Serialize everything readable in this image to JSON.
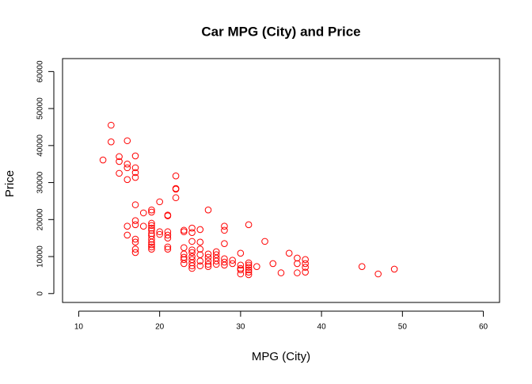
{
  "chart_data": {
    "type": "scatter",
    "title": "Car MPG (City) and Price",
    "x_label": "MPG (City)",
    "y_label": "Price",
    "color": "#ff0000",
    "x": [
      13,
      14,
      14,
      15,
      15,
      15,
      16,
      16,
      16,
      16,
      16,
      16,
      17,
      17,
      17,
      17,
      17,
      17,
      17,
      17,
      17,
      17,
      17,
      18,
      18,
      19,
      19,
      19,
      19,
      19,
      19,
      19,
      19,
      19,
      19,
      19,
      19,
      19,
      20,
      20,
      20,
      21,
      21,
      21,
      21,
      21,
      21,
      21,
      22,
      22,
      22,
      22,
      23,
      23,
      23,
      23,
      23,
      23,
      23,
      24,
      24,
      24,
      24,
      24,
      24,
      24,
      24,
      24,
      24,
      25,
      25,
      25,
      25,
      25,
      25,
      26,
      26,
      26,
      26,
      26,
      26,
      27,
      27,
      27,
      27,
      27,
      28,
      28,
      28,
      28,
      28,
      28,
      29,
      29,
      30,
      30,
      30,
      30,
      30,
      31,
      31,
      31,
      31,
      31,
      31,
      31,
      32,
      33,
      34,
      35,
      36,
      37,
      37,
      37,
      38,
      38,
      38,
      38,
      45,
      47,
      49
    ],
    "values": [
      36100,
      45500,
      41000,
      37000,
      35700,
      32500,
      41300,
      35000,
      34000,
      30800,
      18200,
      15800,
      37200,
      34000,
      32700,
      31400,
      24000,
      19700,
      18600,
      14700,
      13900,
      12000,
      11100,
      21800,
      18200,
      22600,
      22000,
      19000,
      18400,
      17700,
      17100,
      16200,
      15600,
      14700,
      13900,
      13200,
      12600,
      12000,
      24800,
      16700,
      16000,
      21200,
      21000,
      16700,
      15800,
      15000,
      12600,
      12000,
      31800,
      28400,
      28200,
      25900,
      17100,
      16700,
      12400,
      10700,
      9800,
      9200,
      8100,
      17700,
      16500,
      14100,
      11800,
      11100,
      10000,
      9200,
      8300,
      7500,
      6800,
      17300,
      13900,
      12000,
      10500,
      8800,
      7500,
      22600,
      10700,
      9800,
      8800,
      7900,
      7300,
      11300,
      10500,
      9600,
      8800,
      7900,
      18200,
      17100,
      13500,
      9400,
      8500,
      7700,
      9000,
      8100,
      10900,
      7700,
      6800,
      6400,
      5300,
      18600,
      8300,
      7700,
      7100,
      6400,
      5800,
      5100,
      7300,
      14100,
      8100,
      5600,
      10900,
      9600,
      8100,
      5600,
      9200,
      8100,
      7100,
      5800,
      7300,
      5300,
      6600
    ],
    "xlim": [
      8,
      62
    ],
    "ylim": [
      -2400,
      63500
    ],
    "xticks": [
      10,
      20,
      30,
      40,
      50,
      60
    ],
    "yticks": [
      0,
      10000,
      20000,
      30000,
      40000,
      50000,
      60000
    ]
  }
}
